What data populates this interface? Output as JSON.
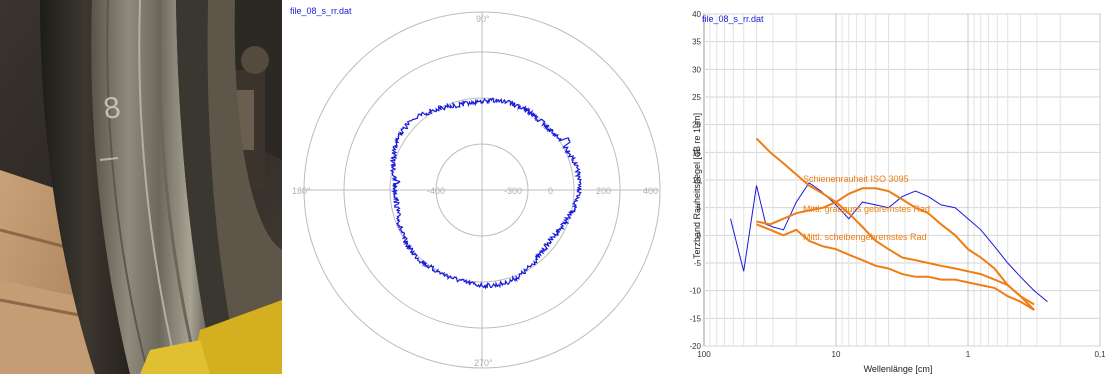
{
  "photo": {
    "subject": "railway wheel tread close-up",
    "marking": "8"
  },
  "chart_data": [
    {
      "type": "polar",
      "title": "file_08_s_rr.dat",
      "angle_labels": [
        "90°",
        "180°",
        "270°"
      ],
      "radial_labels": [
        "-400",
        "-300",
        "0",
        "200",
        "400"
      ],
      "series": [
        {
          "color": "#1a1adc",
          "shape": "closed roughness trace, average radius between second and third ring"
        }
      ]
    },
    {
      "type": "line",
      "title": "file_08_s_rr.dat",
      "xlabel": "Wellenlänge [cm]",
      "ylabel": "Terzband Rauheitspegel [dB re 1um]",
      "x_scale": "log",
      "x_reversed": true,
      "xlim": [
        100,
        0.1
      ],
      "ylim": [
        -20,
        40
      ],
      "x_ticks": [
        "100",
        "10",
        "1",
        "0,1"
      ],
      "y_ticks": [
        "40",
        "35",
        "30",
        "25",
        "20",
        "15",
        "10",
        "5",
        "0",
        "-5",
        "-10",
        "-15",
        "-20"
      ],
      "series": [
        {
          "color": "#1a1adc",
          "points": [
            [
              63,
              3
            ],
            [
              50,
              -6.5
            ],
            [
              40,
              9
            ],
            [
              34,
              2
            ],
            [
              30,
              1.5
            ],
            [
              25,
              1
            ],
            [
              20,
              6
            ],
            [
              16,
              9.5
            ],
            [
              13,
              8
            ],
            [
              10,
              5.5
            ],
            [
              8,
              3
            ],
            [
              6.3,
              6
            ],
            [
              5,
              5.5
            ],
            [
              4,
              5
            ],
            [
              3.15,
              7
            ],
            [
              2.5,
              8
            ],
            [
              2,
              7
            ],
            [
              1.6,
              5.5
            ],
            [
              1.25,
              5
            ],
            [
              1,
              3
            ],
            [
              0.8,
              1
            ],
            [
              0.63,
              -2
            ],
            [
              0.5,
              -5
            ],
            [
              0.4,
              -7.5
            ],
            [
              0.315,
              -10
            ],
            [
              0.25,
              -12
            ]
          ]
        },
        {
          "name": "Schienenrauheit ISO 3095",
          "color": "#f07d14",
          "points": [
            [
              40,
              17.5
            ],
            [
              31.5,
              15
            ],
            [
              25,
              13
            ],
            [
              20,
              11
            ],
            [
              16,
              9
            ],
            [
              12.5,
              7.5
            ],
            [
              10,
              6
            ],
            [
              8,
              4
            ],
            [
              6.3,
              1.5
            ],
            [
              5,
              -1
            ],
            [
              4,
              -2.5
            ],
            [
              3.15,
              -4
            ],
            [
              2.5,
              -4.5
            ],
            [
              2,
              -5
            ],
            [
              1.6,
              -5.5
            ],
            [
              1.25,
              -6
            ],
            [
              1,
              -6.5
            ],
            [
              0.8,
              -7
            ],
            [
              0.63,
              -8
            ],
            [
              0.5,
              -9
            ],
            [
              0.4,
              -11
            ],
            [
              0.315,
              -13.5
            ]
          ]
        },
        {
          "name": "Mittl. grauguss gebremstes Rad",
          "color": "#f07d14",
          "points": [
            [
              40,
              2.5
            ],
            [
              31.5,
              2
            ],
            [
              25,
              3
            ],
            [
              20,
              4
            ],
            [
              16,
              4.5
            ],
            [
              12.5,
              5
            ],
            [
              10,
              6
            ],
            [
              8,
              7.5
            ],
            [
              6.3,
              8.5
            ],
            [
              5,
              8.5
            ],
            [
              4,
              8
            ],
            [
              3.15,
              6.5
            ],
            [
              2.5,
              5
            ],
            [
              2,
              4
            ],
            [
              1.6,
              2
            ],
            [
              1.25,
              0
            ],
            [
              1,
              -2.5
            ],
            [
              0.8,
              -4
            ],
            [
              0.63,
              -6
            ],
            [
              0.5,
              -9
            ],
            [
              0.4,
              -11
            ],
            [
              0.315,
              -12.5
            ]
          ]
        },
        {
          "name": "Mittl. scheibengebremstes Rad",
          "color": "#f07d14",
          "points": [
            [
              40,
              2
            ],
            [
              31.5,
              1
            ],
            [
              25,
              0
            ],
            [
              20,
              1
            ],
            [
              16,
              -1
            ],
            [
              12.5,
              -2
            ],
            [
              10,
              -2.5
            ],
            [
              8,
              -3.5
            ],
            [
              6.3,
              -4.5
            ],
            [
              5,
              -5.5
            ],
            [
              4,
              -6
            ],
            [
              3.15,
              -7
            ],
            [
              2.5,
              -7.5
            ],
            [
              2,
              -7.5
            ],
            [
              1.6,
              -8
            ],
            [
              1.25,
              -8
            ],
            [
              1,
              -8.5
            ],
            [
              0.8,
              -9
            ],
            [
              0.63,
              -9.5
            ],
            [
              0.5,
              -11
            ],
            [
              0.4,
              -12
            ],
            [
              0.315,
              -13.5
            ]
          ]
        }
      ],
      "annotations": [
        "Schienenrauheit ISO 3095",
        "Mittl. grauguss gebremstes Rad",
        "Mittl. scheibengebremstes Rad"
      ]
    }
  ]
}
